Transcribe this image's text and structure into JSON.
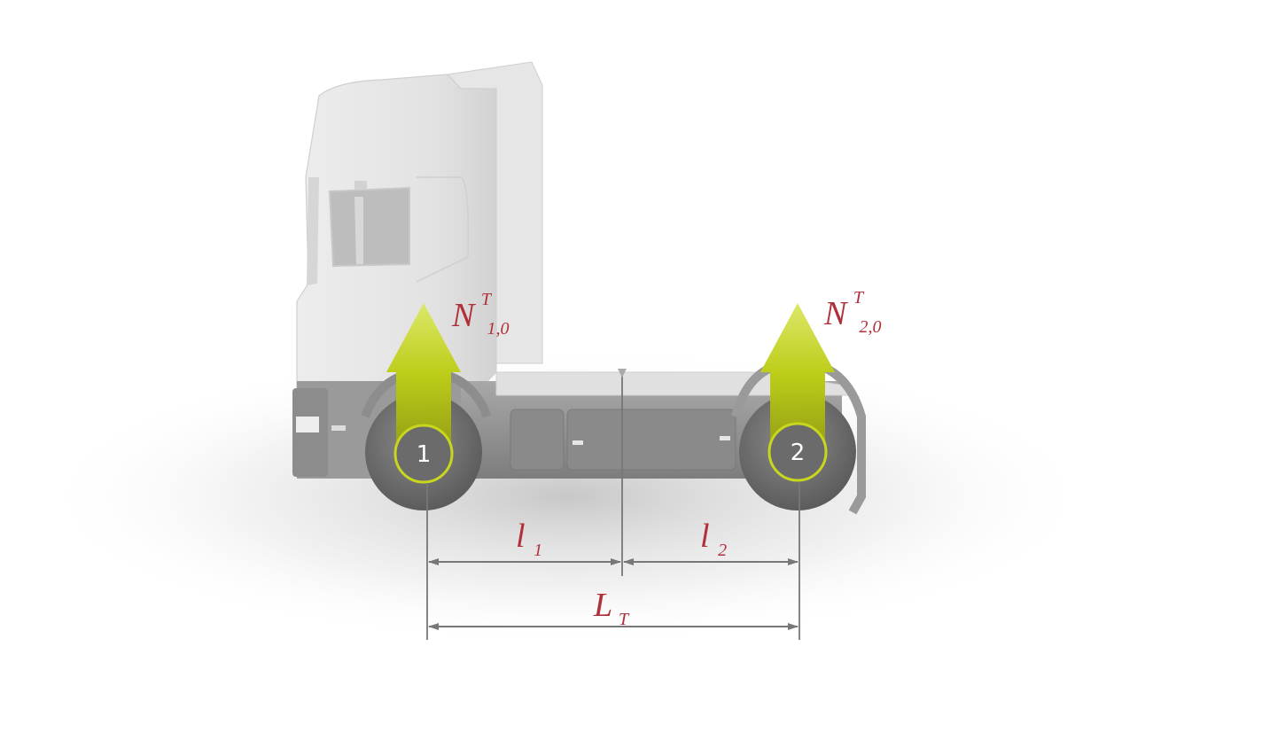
{
  "diagram": {
    "colors": {
      "label": "#b0303a",
      "arrow": "#c4d51a",
      "truck_body": "#e3e3e3",
      "truck_chassis": "#8f8f8f",
      "wheel": "#6a6a6a",
      "dimension_line": "#777777"
    },
    "axles": [
      {
        "number": "1",
        "force_symbol": "N",
        "force_subscript": "1,0",
        "force_superscript": "T"
      },
      {
        "number": "2",
        "force_symbol": "N",
        "force_subscript": "2,0",
        "force_superscript": "T"
      }
    ],
    "dimensions": {
      "l1": {
        "symbol": "l",
        "subscript": "1"
      },
      "l2": {
        "symbol": "l",
        "subscript": "2"
      },
      "wheelbase": {
        "symbol": "L",
        "subscript": "T"
      }
    }
  }
}
